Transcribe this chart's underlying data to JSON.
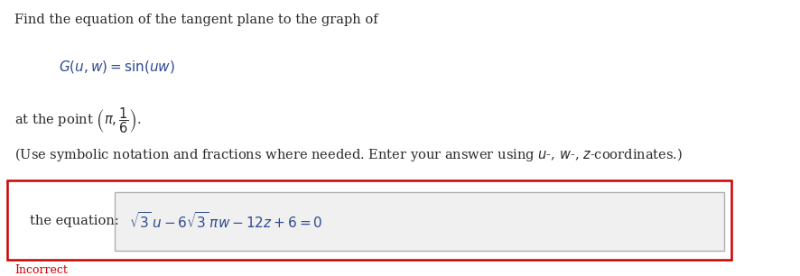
{
  "title_text": "Find the equation of the tangent plane to the graph of",
  "function_text": "$G(u, w) = \\sin(uw)$",
  "point_text": "at the point $\\left(\\pi, \\dfrac{1}{6}\\right)$.",
  "note_text": "(Use symbolic notation and fractions where needed. Enter your answer using $u$-, $w$-, $z$-coordinates.)",
  "label_text": "the equation:",
  "equation_text": "$\\sqrt{3}\\, u - 6\\sqrt{3}\\, \\pi w - 12z + 6 = 0$",
  "incorrect_text": "Incorrect",
  "title_color": "#2b2b2b",
  "function_color": "#2e4a8e",
  "point_color": "#2b2b2b",
  "note_color": "#2b2b2b",
  "label_color": "#2b2b2b",
  "equation_color": "#2e4a8e",
  "incorrect_color": "#cc0000",
  "bg_color": "#ffffff",
  "answer_box_bg": "#f0f0f0",
  "answer_box_border": "#b0b0b0",
  "red_border_color": "#cc0000",
  "fig_width": 8.86,
  "fig_height": 3.06
}
